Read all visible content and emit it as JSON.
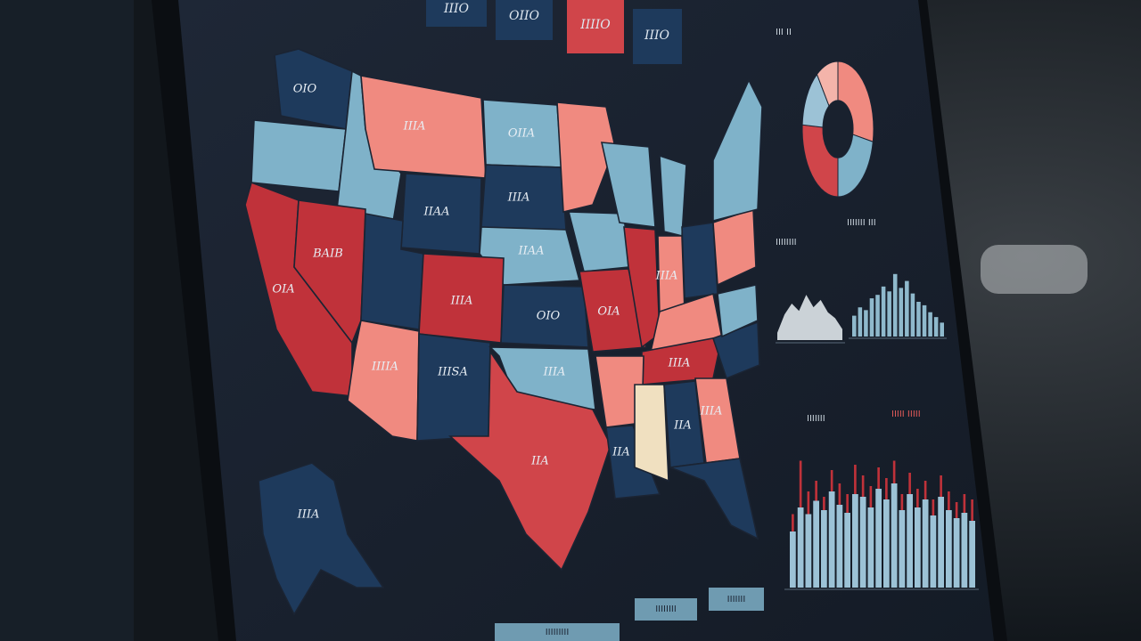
{
  "header": {
    "tabs": [
      "IIIO",
      "OIIO",
      "IIIIO",
      "IIIO"
    ]
  },
  "map": {
    "state_labels": [
      "OIO",
      "IIIA",
      "OIIA",
      "IIAA",
      "IIIA",
      "BAIB",
      "OIA",
      "IIIA",
      "IIIIA",
      "IIISA",
      "IIAA",
      "IIA",
      "OIO",
      "OIA",
      "IIIA",
      "IIIA",
      "IIA",
      "IIA",
      "IIIA",
      "IIIA",
      "IIIA"
    ]
  },
  "panels": {
    "titles": [
      "III II",
      "IIIIIII III",
      "IIIIIIII",
      "IIIIIII",
      "IIIII IIIII"
    ]
  },
  "donut": {
    "values": [
      28,
      22,
      26,
      14,
      10
    ],
    "colors": [
      "#f08a80",
      "#7fb2c9",
      "#d0454a",
      "#9cc2d6",
      "#f4b4aa"
    ]
  },
  "mini_area": {
    "values": [
      10,
      35,
      50,
      40,
      62,
      45,
      55,
      38,
      30,
      15
    ],
    "color": "#dfe5ea",
    "ylim": [
      0,
      100
    ]
  },
  "mini_bars": {
    "values": [
      30,
      42,
      38,
      55,
      60,
      72,
      65,
      90,
      70,
      80,
      62,
      50,
      45,
      35,
      28,
      20
    ],
    "color": "#8fb9cc",
    "ylim": [
      0,
      100
    ]
  },
  "main_bars": {
    "ylim": [
      0,
      100
    ],
    "series": [
      {
        "color": "#c0323a",
        "values": [
          55,
          95,
          72,
          80,
          68,
          88,
          78,
          70,
          92,
          84,
          76,
          90,
          82,
          95,
          70,
          86,
          74,
          80,
          66,
          84,
          72,
          64,
          70,
          66
        ]
      },
      {
        "color": "#9cc2d6",
        "values": [
          42,
          60,
          55,
          65,
          58,
          72,
          62,
          56,
          70,
          68,
          60,
          74,
          66,
          78,
          58,
          70,
          60,
          66,
          54,
          68,
          58,
          52,
          56,
          50
        ]
      }
    ]
  },
  "footer": {
    "tabs": [
      "IIIIIIIII",
      "IIIIIIII",
      "IIIIIII"
    ]
  }
}
